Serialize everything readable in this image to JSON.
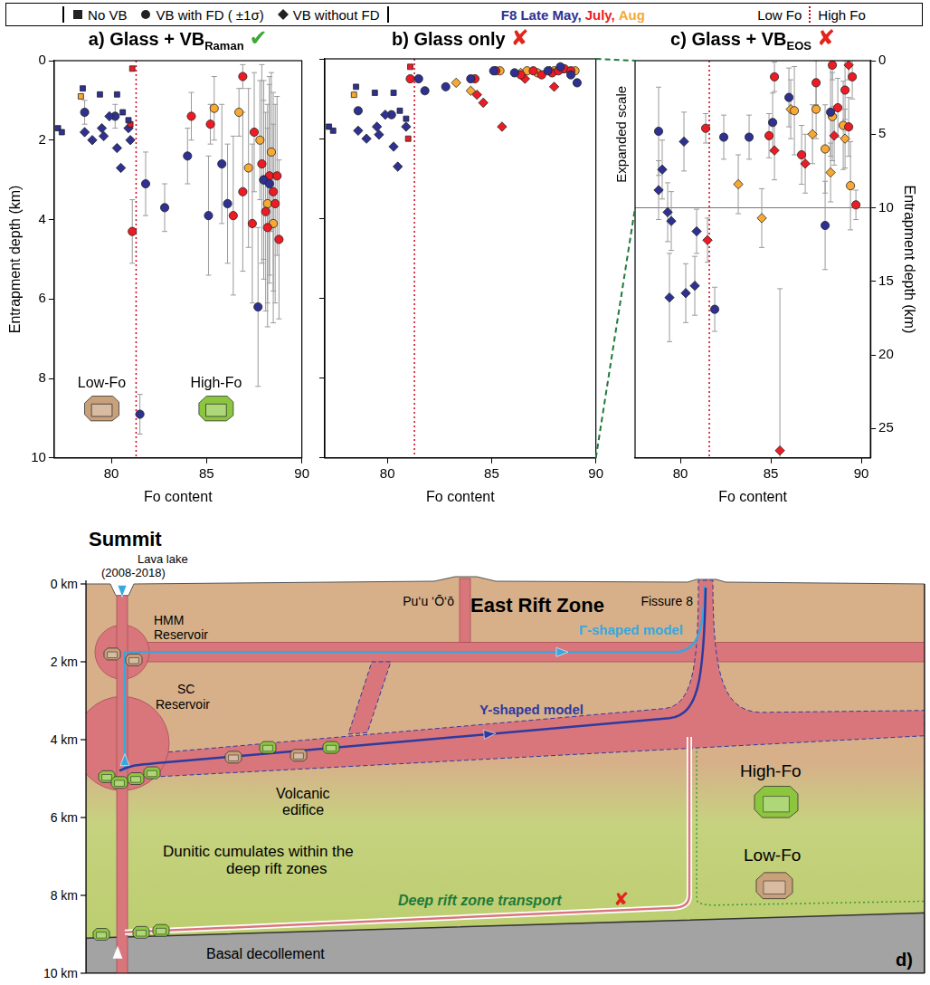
{
  "header": {
    "markers": [
      {
        "marker": "square",
        "label": "No VB"
      },
      {
        "marker": "circle",
        "label": "VB with FD ( ±1σ)"
      },
      {
        "marker": "diamond",
        "label": "VB without FD"
      }
    ],
    "months": [
      {
        "label": "F8 Late May,",
        "color": "#2e3192"
      },
      {
        "label": "July,",
        "color": "#ed1c24"
      },
      {
        "label": "Aug",
        "color": "#f7a934"
      }
    ],
    "fo_groups": [
      "Low Fo",
      "High Fo"
    ]
  },
  "chart_data": [
    {
      "type": "scatter",
      "title": "a) Glass + VB",
      "title_subscript": "Raman",
      "verdict": {
        "text": "✔",
        "color": "#3aa935"
      },
      "xlabel": "Fo content",
      "ylabel": "Entrapment depth (km)",
      "xlim": [
        77,
        90
      ],
      "xticks": [
        80,
        85,
        90
      ],
      "ylim": [
        10,
        0
      ],
      "yticks": [
        0,
        2,
        4,
        6,
        8,
        10
      ],
      "grid": false,
      "divider": 81.3,
      "annotations": [
        {
          "text": "Low-Fo",
          "x": 79.5,
          "y": 8.3,
          "color": "#c8a07a"
        },
        {
          "text": "High-Fo",
          "x": 85.5,
          "y": 8.3,
          "color": "#8cc63e"
        }
      ],
      "series": [
        {
          "name": "F8 Late May",
          "color": "#2e3192",
          "marker": "square",
          "x": [
            77.2,
            77.4,
            78.5,
            79.4,
            80.3,
            80.6,
            80.9
          ],
          "values": [
            1.7,
            1.8,
            0.7,
            0.85,
            0.85,
            1.3,
            1.5
          ]
        },
        {
          "name": "Aug",
          "color": "#f7a934",
          "marker": "square",
          "x": [
            78.4
          ],
          "values": [
            0.9
          ]
        },
        {
          "name": "July",
          "color": "#ed1c24",
          "marker": "square",
          "x": [
            81.1,
            81.0
          ],
          "values": [
            0.2,
            1.6
          ]
        },
        {
          "name": "F8 Late May",
          "color": "#2e3192",
          "marker": "diamond",
          "x": [
            78.6,
            79.0,
            79.5,
            79.6,
            79.9,
            80.3,
            80.5,
            80.9,
            81.0
          ],
          "values": [
            1.8,
            2.0,
            1.7,
            1.9,
            1.4,
            2.2,
            2.7,
            1.7,
            2.0
          ]
        },
        {
          "name": "F8 Late May",
          "color": "#2e3192",
          "marker": "circle",
          "x": [
            78.6,
            80.2,
            81.5,
            81.8,
            82.8,
            84.0,
            85.1,
            85.8,
            86.1,
            87.7,
            88.0,
            88.3
          ],
          "values": [
            1.3,
            1.4,
            8.9,
            3.1,
            3.7,
            2.4,
            3.9,
            2.6,
            3.6,
            6.2,
            3.0,
            3.1
          ],
          "yerr": [
            0.3,
            0.3,
            0.5,
            0.8,
            0.6,
            0.7,
            1.5,
            1.5,
            1.5,
            2.0,
            2.0,
            2.5
          ]
        },
        {
          "name": "July",
          "color": "#ed1c24",
          "marker": "circle",
          "x": [
            81.1,
            84.2,
            85.2,
            86.4,
            86.9,
            86.9,
            87.4,
            87.5,
            87.9,
            88.0,
            88.1,
            88.2,
            88.3,
            88.5,
            88.6,
            88.7,
            88.8
          ],
          "values": [
            4.3,
            1.4,
            1.6,
            3.9,
            0.4,
            3.3,
            4.1,
            1.8,
            2.6,
            3.0,
            3.8,
            4.2,
            2.9,
            3.3,
            3.6,
            2.9,
            4.5
          ],
          "yerr": [
            0.8,
            0.6,
            0.5,
            2.0,
            0.3,
            2.0,
            2.0,
            1.5,
            2.5,
            2.5,
            2.5,
            2.5,
            2.5,
            2.5,
            2.5,
            2.0,
            2.0
          ]
        },
        {
          "name": "Aug",
          "color": "#f7a934",
          "marker": "circle",
          "x": [
            85.4,
            86.7,
            87.2,
            87.8,
            88.2,
            88.4,
            88.5
          ],
          "values": [
            1.2,
            1.3,
            2.7,
            2.0,
            3.6,
            2.3,
            4.1
          ],
          "yerr": [
            0.8,
            0.6,
            2.0,
            1.5,
            2.5,
            2.0,
            2.5
          ]
        }
      ]
    },
    {
      "type": "scatter",
      "title": "b) Glass only",
      "verdict": {
        "text": "✘",
        "color": "#e3241b"
      },
      "xlabel": "Fo content",
      "xlim": [
        77,
        90
      ],
      "xticks": [
        80,
        85,
        90
      ],
      "ylim": [
        10,
        0
      ],
      "yticks": [
        0,
        2,
        4,
        6,
        8,
        10
      ],
      "tick_labels": "x",
      "grid": false,
      "divider": 81.3,
      "series": [
        {
          "name": "F8 Late May",
          "color": "#2e3192",
          "marker": "square",
          "x": [
            77.2,
            77.4,
            78.5,
            79.4,
            80.3,
            80.6,
            80.9
          ],
          "values": [
            1.7,
            1.8,
            0.7,
            0.85,
            0.85,
            1.3,
            1.5
          ]
        },
        {
          "name": "Aug",
          "color": "#f7a934",
          "marker": "square",
          "x": [
            78.4
          ],
          "values": [
            0.9
          ]
        },
        {
          "name": "July",
          "color": "#ed1c24",
          "marker": "square",
          "x": [
            81.1,
            81.0
          ],
          "values": [
            0.2,
            2.0
          ]
        },
        {
          "name": "F8 Late May",
          "color": "#2e3192",
          "marker": "diamond",
          "x": [
            78.6,
            79.0,
            79.5,
            79.6,
            79.9,
            80.3,
            80.5,
            80.9
          ],
          "values": [
            1.8,
            2.0,
            1.7,
            1.9,
            1.4,
            2.2,
            2.7,
            1.7
          ]
        },
        {
          "name": "F8 Late May",
          "color": "#2e3192",
          "marker": "circle",
          "x": [
            78.6,
            80.2,
            81.5,
            81.8,
            82.8,
            84.0,
            85.1,
            86.1,
            87.7,
            88.3,
            88.8,
            89.1
          ],
          "values": [
            1.3,
            1.4,
            0.5,
            0.8,
            0.7,
            0.5,
            0.3,
            0.35,
            0.3,
            0.2,
            0.4,
            0.6
          ]
        },
        {
          "name": "July",
          "color": "#ed1c24",
          "marker": "circle",
          "x": [
            81.1,
            84.2,
            85.2,
            86.4,
            87.0,
            87.4,
            87.9,
            88.2,
            88.5,
            88.8
          ],
          "values": [
            0.5,
            0.5,
            0.3,
            0.4,
            0.3,
            0.4,
            0.35,
            0.3,
            0.25,
            0.3
          ]
        },
        {
          "name": "Aug",
          "color": "#f7a934",
          "marker": "circle",
          "x": [
            85.4,
            86.7,
            87.2,
            88.0,
            88.4,
            89.0
          ],
          "values": [
            0.3,
            0.3,
            0.35,
            0.3,
            0.25,
            0.3
          ]
        },
        {
          "name": "July",
          "color": "#ed1c24",
          "marker": "diamond",
          "x": [
            84.3,
            84.6,
            85.5,
            86.6,
            88.0
          ],
          "values": [
            0.9,
            1.1,
            1.7,
            0.5,
            0.7
          ]
        },
        {
          "name": "Aug",
          "color": "#f7a934",
          "marker": "diamond",
          "x": [
            83.3,
            84.0,
            86.4,
            87.8
          ],
          "values": [
            0.6,
            0.8,
            0.35,
            0.3
          ]
        }
      ]
    },
    {
      "type": "scatter",
      "title": "c) Glass + VB",
      "title_subscript": "EOS",
      "verdict": {
        "text": "✘",
        "color": "#e3241b"
      },
      "xlabel": "Fo content",
      "y2label": "Entrapment depth (km)",
      "xlim": [
        77.5,
        90.5
      ],
      "xticks": [
        80,
        85,
        90
      ],
      "y2lim": [
        27,
        0
      ],
      "y2ticks": [
        0,
        5,
        10,
        15,
        20,
        25
      ],
      "grid": false,
      "divider": 81.6,
      "scale_note": "Expanded scale",
      "scale_line": 10,
      "series": [
        {
          "name": "F8 Late May",
          "color": "#2e3192",
          "marker": "circle",
          "axis": "y2",
          "x": [
            78.8,
            81.9,
            82.4,
            83.8,
            85.1,
            86.0,
            88.0,
            88.3
          ],
          "values": [
            4.8,
            16.9,
            5.2,
            5.2,
            4.2,
            2.5,
            11.2,
            3.5
          ],
          "yerr": [
            3,
            1.5,
            1.5,
            1.5,
            2,
            2,
            3,
            3
          ]
        },
        {
          "name": "F8 Late May",
          "color": "#2e3192",
          "marker": "diamond",
          "axis": "y2",
          "x": [
            78.8,
            79.0,
            79.3,
            79.4,
            79.5,
            80.2,
            80.3,
            80.8,
            80.9
          ],
          "values": [
            8.8,
            7.4,
            10.3,
            16.1,
            10.9,
            5.5,
            15.8,
            15.3,
            11.6
          ],
          "yerr": [
            2,
            2,
            2,
            3,
            2,
            2,
            2,
            2,
            1.5
          ]
        },
        {
          "name": "July",
          "color": "#ed1c24",
          "marker": "circle",
          "axis": "y2",
          "x": [
            81.4,
            84.9,
            85.2,
            86.7,
            87.5,
            88.4,
            88.7,
            89.1,
            89.3,
            89.5,
            89.7
          ],
          "values": [
            4.6,
            5.1,
            1.1,
            6.4,
            1.5,
            0.3,
            3.2,
            2.0,
            4.5,
            1.1,
            9.8
          ],
          "yerr": [
            1,
            1.5,
            1,
            2,
            1.5,
            1,
            2,
            2,
            2,
            1.5,
            1
          ]
        },
        {
          "name": "July",
          "color": "#ed1c24",
          "marker": "diamond",
          "axis": "y2",
          "x": [
            81.5,
            85.2,
            85.5,
            86.9,
            88.5,
            89.3
          ],
          "values": [
            12.2,
            6.1,
            26.5,
            7.0,
            5.1,
            0.3
          ],
          "yerr": [
            1.5,
            2,
            11,
            2,
            2,
            1
          ]
        },
        {
          "name": "Aug",
          "color": "#f7a934",
          "marker": "circle",
          "axis": "y2",
          "x": [
            86.3,
            87.5,
            88.0,
            88.4,
            89.0,
            89.4
          ],
          "values": [
            3.4,
            3.3,
            6.0,
            3.8,
            4.4,
            8.5
          ],
          "yerr": [
            3,
            2,
            3,
            3,
            3,
            3
          ]
        },
        {
          "name": "Aug",
          "color": "#f7a934",
          "marker": "diamond",
          "axis": "y2",
          "x": [
            83.2,
            84.5,
            86.1,
            87.3,
            88.3,
            89.1
          ],
          "values": [
            8.4,
            10.7,
            3.3,
            5.0,
            7.6,
            5.3
          ],
          "yerr": [
            2,
            2,
            2,
            2,
            2,
            2
          ]
        }
      ]
    }
  ],
  "diagram": {
    "panel": "d)",
    "summit": "Summit",
    "rift": "East Rift Zone",
    "lava_lake": [
      "Lava lake",
      "(2008-2018)"
    ],
    "hmm": [
      "HMM",
      "Reservoir"
    ],
    "sc": [
      "SC",
      "Reservoir"
    ],
    "puu": "Pu‘u ‘Ō‘ō",
    "fissure": "Fissure 8",
    "gamma_model": "Γ-shaped model",
    "y_model": "Y-shaped model",
    "edifice": [
      "Volcanic",
      "edifice"
    ],
    "dunite": [
      "Dunitic cumulates within the",
      "deep rift zones"
    ],
    "deep": "Deep rift zone transport",
    "deep_verdict": {
      "text": "✘",
      "color": "#e3241b"
    },
    "high": "High-Fo",
    "low": "Low-Fo",
    "decollement": "Basal decollement",
    "depth_ticks": [
      {
        "value": 0,
        "label": "0 km"
      },
      {
        "value": 2,
        "label": "2 km"
      },
      {
        "value": 4,
        "label": "4 km"
      },
      {
        "value": 6,
        "label": "6 km"
      },
      {
        "value": 8,
        "label": "8 km"
      },
      {
        "value": 10,
        "label": "10 km"
      }
    ]
  }
}
